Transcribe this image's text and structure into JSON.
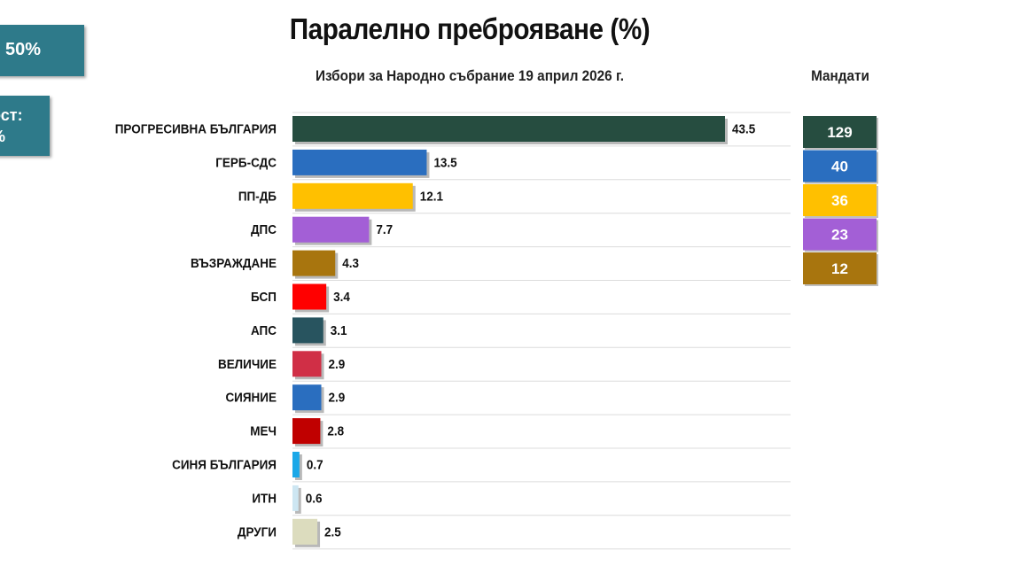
{
  "side_boxes": {
    "box1_text": "50%",
    "box2_line1": "ост:",
    "box2_line2": "%"
  },
  "chart_data": {
    "type": "bar",
    "orientation": "horizontal",
    "title": "Паралелно преброяване (%)",
    "subtitle": "Избори за Народно събрание 19 април 2026 г.",
    "seats_header": "Мандати",
    "categories": [
      "ПРОГРЕСИВНА БЪЛГАРИЯ",
      "ГЕРБ-СДС",
      "ПП-ДБ",
      "ДПС",
      "ВЪЗРАЖДАНЕ",
      "БСП",
      "АПС",
      "ВЕЛИЧИЕ",
      "СИЯНИЕ",
      "МЕЧ",
      "СИНЯ БЪЛГАРИЯ",
      "ИТН",
      "ДРУГИ"
    ],
    "values": [
      43.5,
      13.5,
      12.1,
      7.7,
      4.3,
      3.4,
      3.1,
      2.9,
      2.9,
      2.8,
      0.7,
      0.6,
      2.5
    ],
    "value_labels": [
      "43.5",
      "13.5",
      "12.1",
      "7.7",
      "4.3",
      "3.4",
      "3.1",
      "2.9",
      "2.9",
      "2.8",
      "0.7",
      "0.6",
      "2.5"
    ],
    "colors": [
      "#264d40",
      "#2a6ebf",
      "#ffc000",
      "#a35fd6",
      "#a8750e",
      "#ff0000",
      "#28545f",
      "#d02f46",
      "#2a6ebf",
      "#c00000",
      "#1ba8e8",
      "#cde6f2",
      "#dcdcbe"
    ],
    "seats": [
      {
        "party": "ПРОГРЕСИВНА БЪЛГАРИЯ",
        "value": "129",
        "color": "#264d40"
      },
      {
        "party": "ГЕРБ-СДС",
        "value": "40",
        "color": "#2a6ebf"
      },
      {
        "party": "ПП-ДБ",
        "value": "36",
        "color": "#ffc000"
      },
      {
        "party": "ДПС",
        "value": "23",
        "color": "#a35fd6"
      },
      {
        "party": "ВЪЗРАЖДАНЕ",
        "value": "12",
        "color": "#a8750e"
      }
    ],
    "grid": true
  }
}
